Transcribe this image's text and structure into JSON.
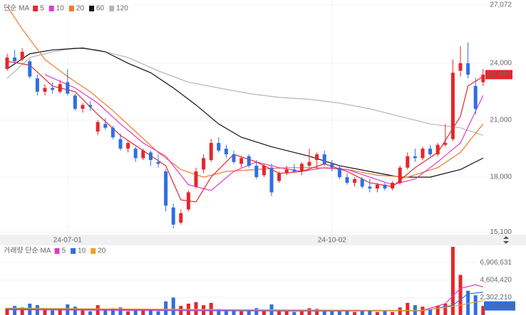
{
  "chart_data": [
    {
      "type": "candlestick",
      "legend_title": "단순 MA",
      "categories": [
        null,
        null,
        null,
        null,
        null,
        null,
        null,
        null,
        "24-07-01",
        null,
        null,
        null,
        null,
        null,
        null,
        null,
        null,
        null,
        null,
        null,
        null,
        null,
        null,
        null,
        null,
        null,
        null,
        null,
        null,
        null,
        null,
        null,
        null,
        null,
        null,
        null,
        null,
        null,
        null,
        null,
        null,
        null,
        null,
        "24-10-02",
        null,
        null,
        null,
        null,
        null,
        null,
        null,
        null,
        null,
        null,
        null,
        null,
        null,
        null,
        null,
        null,
        null,
        null,
        null,
        null
      ],
      "open": [
        23700,
        24300,
        24200,
        24100,
        23200,
        22500,
        22700,
        22500,
        23000,
        22300,
        21600,
        21800,
        20400,
        20800,
        20600,
        20000,
        19500,
        19500,
        19000,
        19300,
        18800,
        18300,
        16400,
        15600,
        16300,
        17500,
        18400,
        18900,
        19800,
        19500,
        19200,
        18700,
        19100,
        18600,
        18100,
        18500,
        17800,
        18200,
        18400,
        18300,
        18600,
        18900,
        19200,
        18700,
        18500,
        18000,
        17700,
        17900,
        17500,
        17400,
        17600,
        17400,
        17700,
        18500,
        19100,
        19000,
        19500,
        19200,
        19700,
        20000,
        23600,
        24000,
        22800,
        23000
      ],
      "high": [
        24500,
        24700,
        24800,
        24200,
        23400,
        22900,
        23000,
        23100,
        23700,
        22400,
        21900,
        22000,
        21000,
        21100,
        20700,
        20300,
        19900,
        19600,
        19500,
        19400,
        19200,
        18400,
        16600,
        16300,
        17300,
        18500,
        19200,
        20000,
        20100,
        19700,
        19400,
        19100,
        19200,
        18900,
        18700,
        18700,
        18300,
        18600,
        18700,
        18800,
        19500,
        19300,
        19400,
        18900,
        18600,
        18200,
        18000,
        18000,
        17900,
        17700,
        17700,
        17800,
        18600,
        19300,
        19500,
        19600,
        19700,
        19800,
        20800,
        24200,
        24900,
        25100,
        23200,
        23700
      ],
      "low": [
        23600,
        23900,
        24100,
        23200,
        22300,
        22300,
        22400,
        22400,
        22300,
        21500,
        21400,
        21500,
        20200,
        20500,
        20000,
        19400,
        19300,
        18800,
        18900,
        18600,
        18500,
        16200,
        15300,
        15500,
        16200,
        17400,
        18200,
        18800,
        19300,
        19000,
        18700,
        18500,
        18500,
        17900,
        18000,
        17000,
        17700,
        18100,
        18200,
        18100,
        18500,
        18400,
        18600,
        18300,
        17900,
        17600,
        17500,
        17400,
        17200,
        17200,
        17300,
        17300,
        17600,
        18400,
        18800,
        18900,
        19100,
        19100,
        19600,
        19900,
        23300,
        23200,
        21300,
        22800
      ],
      "close": [
        24300,
        24100,
        24600,
        23300,
        22500,
        22700,
        22600,
        22900,
        22400,
        21600,
        21800,
        21700,
        20900,
        20600,
        20100,
        19500,
        19800,
        19000,
        19400,
        18900,
        18700,
        16500,
        15500,
        16100,
        17200,
        18300,
        19000,
        19800,
        19400,
        19200,
        18800,
        19000,
        18600,
        18000,
        18600,
        17200,
        18200,
        18400,
        18300,
        18700,
        18800,
        19200,
        18700,
        18500,
        18000,
        17700,
        17900,
        17500,
        17400,
        17600,
        17400,
        17700,
        18500,
        19100,
        19000,
        19500,
        19200,
        19700,
        19800,
        23500,
        24000,
        23400,
        21600,
        23400
      ],
      "up_color": "#e5262b",
      "down_color": "#2f6fe4",
      "ylim": [
        14970,
        27330
      ],
      "yticks": [
        {
          "value": 27072,
          "label": "27,072"
        },
        {
          "value": 24000,
          "label": "24,000"
        },
        {
          "value": 21000,
          "label": "21,000"
        },
        {
          "value": 18000,
          "label": "18,000"
        },
        {
          "value": 15100,
          "label": "15,100"
        }
      ],
      "grid": true,
      "current_price": {
        "value": 23400,
        "label": "23,400"
      },
      "ma_series": [
        {
          "name": "5",
          "color": "#e5262b",
          "x": [
            0,
            3,
            6,
            9,
            12,
            15,
            18,
            21,
            23,
            25,
            27,
            30,
            33,
            36,
            39,
            42,
            45,
            48,
            51,
            54,
            57,
            60,
            61,
            63
          ],
          "values": [
            24100,
            23900,
            22800,
            22500,
            21300,
            20200,
            19400,
            18600,
            16800,
            16700,
            18000,
            19200,
            18800,
            18200,
            18300,
            18700,
            18300,
            17700,
            17500,
            18500,
            19300,
            21200,
            22800,
            23300
          ]
        },
        {
          "name": "10",
          "color": "#e03bc4",
          "x": [
            5,
            9,
            12,
            15,
            18,
            21,
            24,
            27,
            30,
            33,
            36,
            39,
            42,
            45,
            48,
            51,
            54,
            57,
            60,
            63
          ],
          "values": [
            23400,
            22700,
            21900,
            20800,
            19800,
            19100,
            17600,
            17300,
            18300,
            18800,
            18500,
            18300,
            18500,
            18400,
            18000,
            17600,
            17900,
            18800,
            19800,
            22300
          ]
        },
        {
          "name": "20",
          "color": "#f07a2a",
          "x": [
            0,
            2,
            5,
            8,
            11,
            14,
            17,
            20,
            23,
            26,
            29,
            33,
            37,
            41,
            45,
            49,
            53,
            57,
            60,
            63
          ],
          "values": [
            27000,
            25800,
            24200,
            23300,
            22500,
            21500,
            20400,
            19300,
            18400,
            18000,
            18300,
            18400,
            18500,
            18500,
            18400,
            18100,
            18000,
            18500,
            19300,
            20800
          ]
        },
        {
          "name": "60",
          "color": "#111111",
          "x": [
            0,
            3,
            6,
            10,
            13,
            16,
            19,
            22,
            25,
            28,
            31,
            35,
            40,
            44,
            48,
            52,
            56,
            60,
            63
          ],
          "values": [
            23700,
            24500,
            24700,
            24800,
            24600,
            24000,
            23500,
            22700,
            21800,
            20800,
            20100,
            19600,
            19100,
            18600,
            18300,
            18000,
            18000,
            18400,
            19000
          ]
        },
        {
          "name": "120",
          "color": "#b5b5b5",
          "x": [
            0,
            3,
            6,
            9,
            12,
            16,
            20,
            24,
            28,
            32,
            36,
            40,
            44,
            48,
            52,
            56,
            60,
            63
          ],
          "values": [
            23200,
            24300,
            24600,
            24800,
            24700,
            24300,
            23600,
            23000,
            22700,
            22400,
            22200,
            22100,
            21900,
            21600,
            21200,
            20800,
            20600,
            20200
          ]
        }
      ]
    },
    {
      "type": "bar",
      "legend_title": "거래량 단순 MA",
      "values": [
        900000,
        1200000,
        1000000,
        1500000,
        1300000,
        700000,
        600000,
        800000,
        1400000,
        1100000,
        600000,
        500000,
        1300000,
        800000,
        900000,
        1000000,
        500000,
        700000,
        600000,
        800000,
        500000,
        1800000,
        2300000,
        1200000,
        1500000,
        1700000,
        1300000,
        1600000,
        800000,
        600000,
        700000,
        500000,
        600000,
        900000,
        700000,
        1400000,
        600000,
        500000,
        400000,
        600000,
        900000,
        800000,
        600000,
        500000,
        600000,
        700000,
        400000,
        500000,
        600000,
        400000,
        500000,
        400000,
        1000000,
        1600000,
        1300000,
        1100000,
        800000,
        1200000,
        1500000,
        9000000,
        5300000,
        3200000,
        2600000,
        1199006
      ],
      "ylim": [
        0,
        9200000
      ],
      "yticks": [
        {
          "value": 6906631,
          "label": "6,906,631"
        },
        {
          "value": 4604420,
          "label": "4,604,420"
        },
        {
          "value": 2302210,
          "label": "2,302,210"
        }
      ],
      "current_value": {
        "value": 1199006,
        "label": "1,199,006"
      },
      "series": [
        {
          "name": "5",
          "color": "#e03bc4",
          "x": [
            0,
            20,
            40,
            55,
            58,
            60,
            62,
            63
          ],
          "values": [
            700000,
            600000,
            500000,
            600000,
            1500000,
            3500000,
            4000000,
            3700000
          ]
        },
        {
          "name": "10",
          "color": "#2f6fe4",
          "x": [
            0,
            30,
            55,
            59,
            61,
            63
          ],
          "values": [
            800000,
            650000,
            550000,
            1300000,
            2800000,
            3000000
          ]
        },
        {
          "name": "20",
          "color": "#f0a020",
          "x": [
            0,
            30,
            55,
            60,
            63
          ],
          "values": [
            900000,
            700000,
            600000,
            1300000,
            1900000
          ]
        }
      ]
    }
  ]
}
